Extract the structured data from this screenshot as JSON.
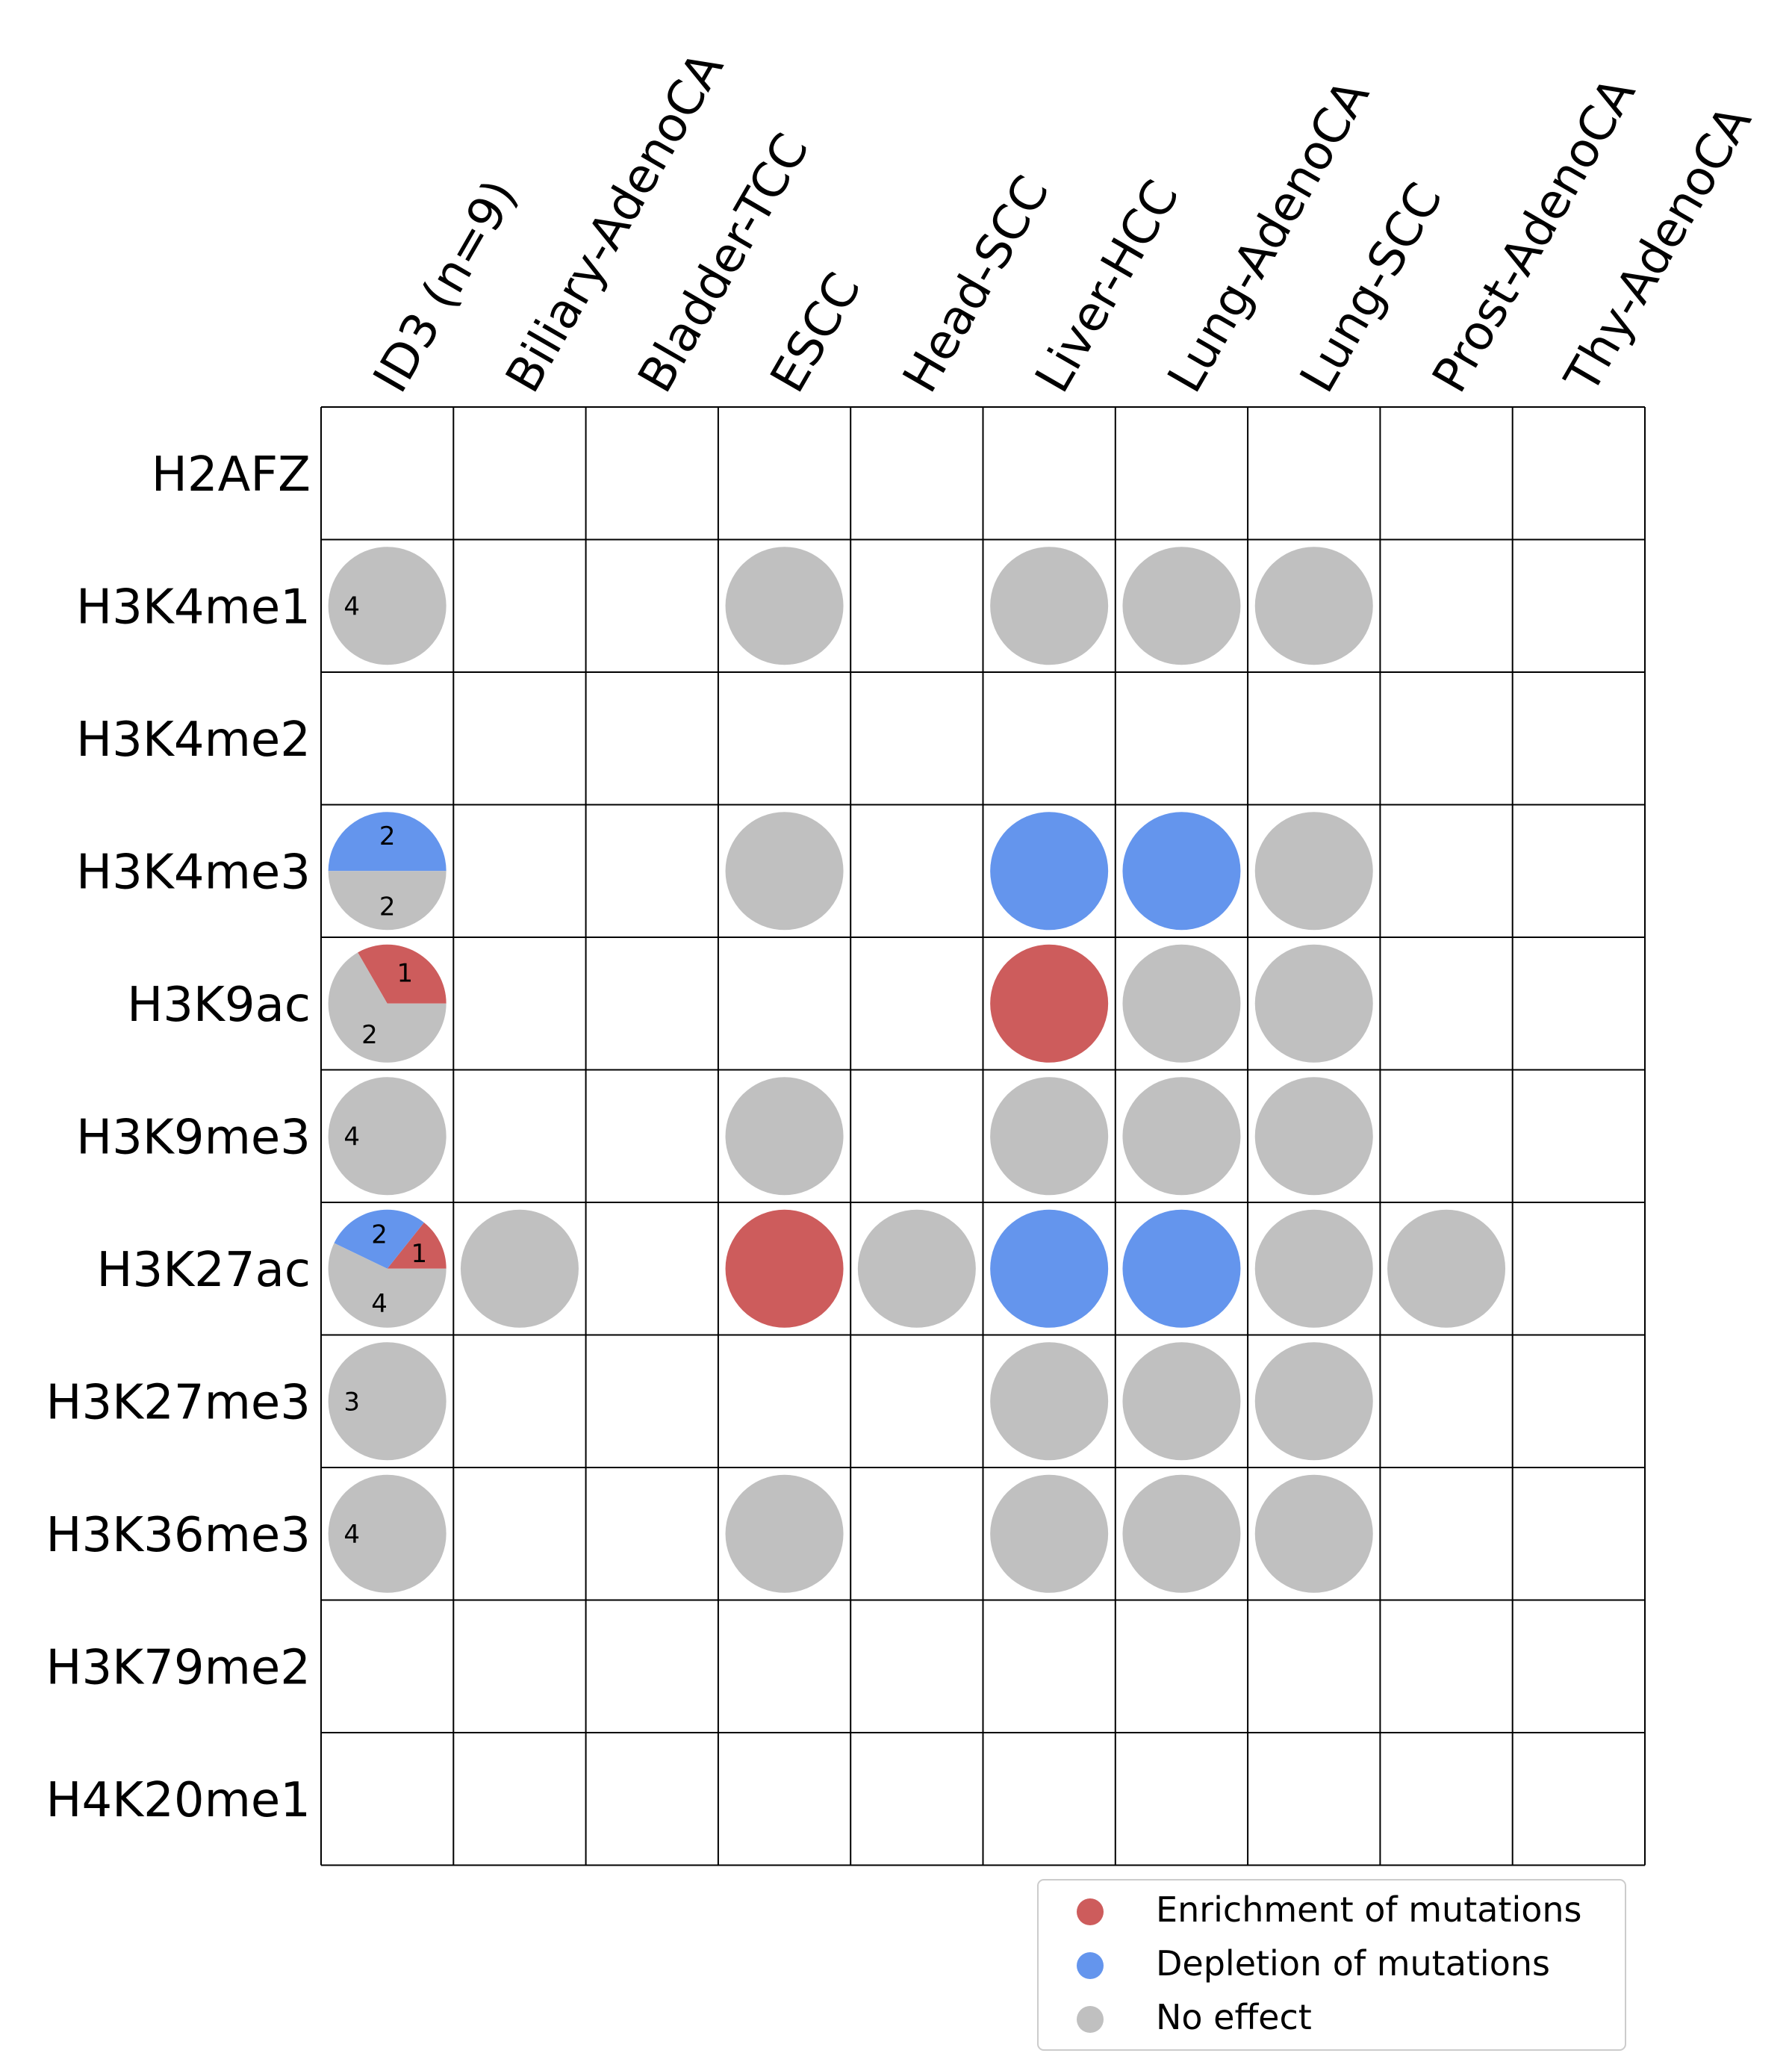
{
  "chart_data": {
    "type": "heatmap",
    "colors": {
      "enrichment": "#cd5c5c",
      "depletion": "#6495ed",
      "no_effect": "#c0c0c0",
      "grid": "#000000",
      "legend_border": "#cccccc"
    },
    "columns": [
      "ID3 (n=9)",
      "Biliary-AdenoCA",
      "Bladder-TCC",
      "ESCC",
      "Head-SCC",
      "Liver-HCC",
      "Lung-AdenoCA",
      "Lung-SCC",
      "Prost-AdenoCA",
      "Thy-AdenoCA"
    ],
    "rows": [
      "H2AFZ",
      "H3K4me1",
      "H3K4me2",
      "H3K4me3",
      "H3K9ac",
      "H3K9me3",
      "H3K27ac",
      "H3K27me3",
      "H3K36me3",
      "H3K79me2",
      "H4K20me1"
    ],
    "cells": [
      {
        "row": "H3K4me1",
        "col": "ID3 (n=9)",
        "enrichment": 0,
        "depletion": 0,
        "no_effect": 4
      },
      {
        "row": "H3K4me1",
        "col": "ESCC",
        "effect": "no_effect"
      },
      {
        "row": "H3K4me1",
        "col": "Liver-HCC",
        "effect": "no_effect"
      },
      {
        "row": "H3K4me1",
        "col": "Lung-AdenoCA",
        "effect": "no_effect"
      },
      {
        "row": "H3K4me1",
        "col": "Lung-SCC",
        "effect": "no_effect"
      },
      {
        "row": "H3K4me3",
        "col": "ID3 (n=9)",
        "enrichment": 0,
        "depletion": 2,
        "no_effect": 2
      },
      {
        "row": "H3K4me3",
        "col": "ESCC",
        "effect": "no_effect"
      },
      {
        "row": "H3K4me3",
        "col": "Liver-HCC",
        "effect": "depletion"
      },
      {
        "row": "H3K4me3",
        "col": "Lung-AdenoCA",
        "effect": "depletion"
      },
      {
        "row": "H3K4me3",
        "col": "Lung-SCC",
        "effect": "no_effect"
      },
      {
        "row": "H3K9ac",
        "col": "ID3 (n=9)",
        "enrichment": 1,
        "depletion": 0,
        "no_effect": 2
      },
      {
        "row": "H3K9ac",
        "col": "Liver-HCC",
        "effect": "enrichment"
      },
      {
        "row": "H3K9ac",
        "col": "Lung-AdenoCA",
        "effect": "no_effect"
      },
      {
        "row": "H3K9ac",
        "col": "Lung-SCC",
        "effect": "no_effect"
      },
      {
        "row": "H3K9me3",
        "col": "ID3 (n=9)",
        "enrichment": 0,
        "depletion": 0,
        "no_effect": 4
      },
      {
        "row": "H3K9me3",
        "col": "ESCC",
        "effect": "no_effect"
      },
      {
        "row": "H3K9me3",
        "col": "Liver-HCC",
        "effect": "no_effect"
      },
      {
        "row": "H3K9me3",
        "col": "Lung-AdenoCA",
        "effect": "no_effect"
      },
      {
        "row": "H3K9me3",
        "col": "Lung-SCC",
        "effect": "no_effect"
      },
      {
        "row": "H3K27ac",
        "col": "ID3 (n=9)",
        "enrichment": 1,
        "depletion": 2,
        "no_effect": 4
      },
      {
        "row": "H3K27ac",
        "col": "Biliary-AdenoCA",
        "effect": "no_effect"
      },
      {
        "row": "H3K27ac",
        "col": "ESCC",
        "effect": "enrichment"
      },
      {
        "row": "H3K27ac",
        "col": "Head-SCC",
        "effect": "no_effect"
      },
      {
        "row": "H3K27ac",
        "col": "Liver-HCC",
        "effect": "depletion"
      },
      {
        "row": "H3K27ac",
        "col": "Lung-AdenoCA",
        "effect": "depletion"
      },
      {
        "row": "H3K27ac",
        "col": "Lung-SCC",
        "effect": "no_effect"
      },
      {
        "row": "H3K27ac",
        "col": "Prost-AdenoCA",
        "effect": "no_effect"
      },
      {
        "row": "H3K27me3",
        "col": "ID3 (n=9)",
        "enrichment": 0,
        "depletion": 0,
        "no_effect": 3
      },
      {
        "row": "H3K27me3",
        "col": "Liver-HCC",
        "effect": "no_effect"
      },
      {
        "row": "H3K27me3",
        "col": "Lung-AdenoCA",
        "effect": "no_effect"
      },
      {
        "row": "H3K27me3",
        "col": "Lung-SCC",
        "effect": "no_effect"
      },
      {
        "row": "H3K36me3",
        "col": "ID3 (n=9)",
        "enrichment": 0,
        "depletion": 0,
        "no_effect": 4
      },
      {
        "row": "H3K36me3",
        "col": "ESCC",
        "effect": "no_effect"
      },
      {
        "row": "H3K36me3",
        "col": "Liver-HCC",
        "effect": "no_effect"
      },
      {
        "row": "H3K36me3",
        "col": "Lung-AdenoCA",
        "effect": "no_effect"
      },
      {
        "row": "H3K36me3",
        "col": "Lung-SCC",
        "effect": "no_effect"
      }
    ],
    "legend": {
      "position": "bottom-right",
      "entries": [
        {
          "key": "enrichment",
          "label": "Enrichment of mutations"
        },
        {
          "key": "depletion",
          "label": "Depletion of mutations"
        },
        {
          "key": "no_effect",
          "label": "No effect"
        }
      ]
    }
  }
}
